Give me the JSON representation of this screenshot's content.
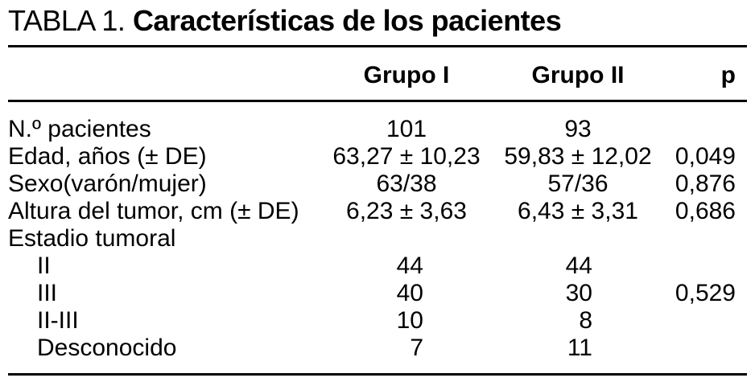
{
  "table": {
    "title_lead": "TABLA 1.",
    "title_main": "Características de los pacientes",
    "headers": {
      "group1": "Grupo I",
      "group2": "Grupo II",
      "p": "p"
    },
    "rows": [
      {
        "label": "N.º pacientes",
        "group1": "101",
        "group2": "93",
        "p": ""
      },
      {
        "label": "Edad, años (± DE)",
        "group1": "63,27 ± 10,23",
        "group2": "59,83 ± 12,02",
        "p": "0,049"
      },
      {
        "label": "Sexo(varón/mujer)",
        "group1": "63/38",
        "group2": "57/36",
        "p": "0,876"
      },
      {
        "label": "Altura del tumor, cm (± DE)",
        "group1": "6,23 ± 3,63",
        "group2": "6,43 ± 3,31",
        "p": "0,686"
      },
      {
        "label": "Estadio tumoral",
        "group1": "",
        "group2": "",
        "p": ""
      },
      {
        "label": "II",
        "group1": "44",
        "group2": "44",
        "p": ""
      },
      {
        "label": "III",
        "group1": "40",
        "group2": "30",
        "p": "0,529"
      },
      {
        "label": "II-III",
        "group1": "10",
        "group2": "8",
        "p": ""
      },
      {
        "label": "Desconocido",
        "group1": "7",
        "group2": "11",
        "p": ""
      }
    ]
  }
}
